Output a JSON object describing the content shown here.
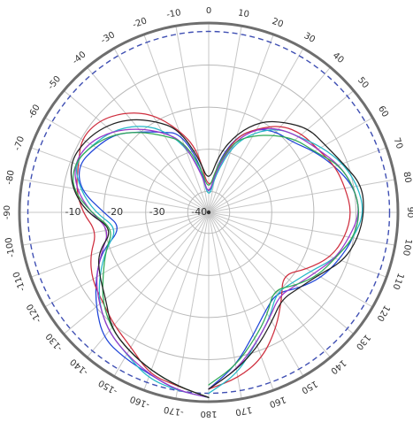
{
  "chart_data": {
    "type": "line",
    "subtype": "polar",
    "title": "",
    "angle_unit": "degrees",
    "angle_zero_direction": "top",
    "angle_labels_right": [
      "0",
      "10",
      "20",
      "30",
      "40",
      "50",
      "60",
      "70",
      "80",
      "90",
      "100",
      "110",
      "120",
      "130",
      "140",
      "150",
      "160",
      "170",
      "180"
    ],
    "angle_labels_left": [
      "-10",
      "-20",
      "-30",
      "-40",
      "-50",
      "-60",
      "-70",
      "-80",
      "-90",
      "-100",
      "-110",
      "-120",
      "-130",
      "-140",
      "-150",
      "-160",
      "-170"
    ],
    "radial_tick_labels": [
      "-40",
      "-30",
      "-20",
      "-10"
    ],
    "radial_range": [
      -45,
      0
    ],
    "grid": true,
    "reference_circle_level": -2,
    "series": [
      {
        "color": "#1f45d8",
        "r": [
          -1,
          -2,
          -4,
          -5,
          -6,
          -10,
          -14,
          -18,
          -24,
          -20,
          -14,
          -12,
          -14,
          -16,
          -20,
          -23,
          -25,
          -33,
          -42,
          -33,
          -26,
          -22,
          -20,
          -19,
          -16,
          -13,
          -10,
          -9,
          -10,
          -12,
          -14,
          -17,
          -20,
          -18,
          -14,
          -8,
          -3
        ]
      },
      {
        "color": "#cf2f3f",
        "r": [
          -1,
          -3,
          -4,
          -8,
          -10,
          -12,
          -13,
          -15,
          -18,
          -15,
          -13,
          -12,
          -10,
          -11,
          -14,
          -18,
          -24,
          -30,
          -40,
          -34,
          -26,
          -22,
          -18,
          -16,
          -15,
          -13,
          -12,
          -11,
          -12,
          -14,
          -18,
          -22,
          -18,
          -13,
          -8,
          -5,
          -3
        ]
      },
      {
        "color": "#25b8c8",
        "r": [
          -1,
          -2,
          -3,
          -6,
          -8,
          -11,
          -15,
          -19,
          -23,
          -18,
          -14,
          -11,
          -13,
          -15,
          -18,
          -22,
          -28,
          -35,
          -42,
          -36,
          -28,
          -23,
          -19,
          -17,
          -14,
          -11,
          -9,
          -8,
          -10,
          -13,
          -17,
          -19,
          -20,
          -16,
          -12,
          -6,
          -2
        ]
      },
      {
        "color": "#9a36c9",
        "r": [
          -1,
          -2,
          -4,
          -6,
          -8,
          -11,
          -14,
          -18,
          -21,
          -17,
          -13,
          -11,
          -12,
          -15,
          -19,
          -23,
          -27,
          -36,
          -41,
          -35,
          -27,
          -22,
          -19,
          -17,
          -15,
          -12,
          -10,
          -9,
          -11,
          -13,
          -16,
          -18,
          -19,
          -16,
          -12,
          -7,
          -3
        ]
      },
      {
        "color": "#2faa57",
        "r": [
          -1,
          -3,
          -5,
          -7,
          -9,
          -12,
          -16,
          -19,
          -22,
          -17,
          -12,
          -11,
          -13,
          -16,
          -20,
          -24,
          -27,
          -34,
          -40,
          -34,
          -27,
          -24,
          -21,
          -18,
          -16,
          -12,
          -10,
          -9,
          -10,
          -13,
          -15,
          -18,
          -21,
          -17,
          -13,
          -8,
          -4
        ]
      },
      {
        "color": "#222222",
        "r": [
          -1,
          -3,
          -5,
          -7,
          -9,
          -13,
          -15,
          -17,
          -22,
          -16,
          -12,
          -10,
          -11,
          -13,
          -16,
          -20,
          -24,
          -32,
          -38,
          -31,
          -25,
          -20,
          -17,
          -14,
          -13,
          -11,
          -8,
          -8,
          -9,
          -11,
          -15,
          -17,
          -18,
          -15,
          -11,
          -7,
          -3
        ]
      }
    ]
  }
}
